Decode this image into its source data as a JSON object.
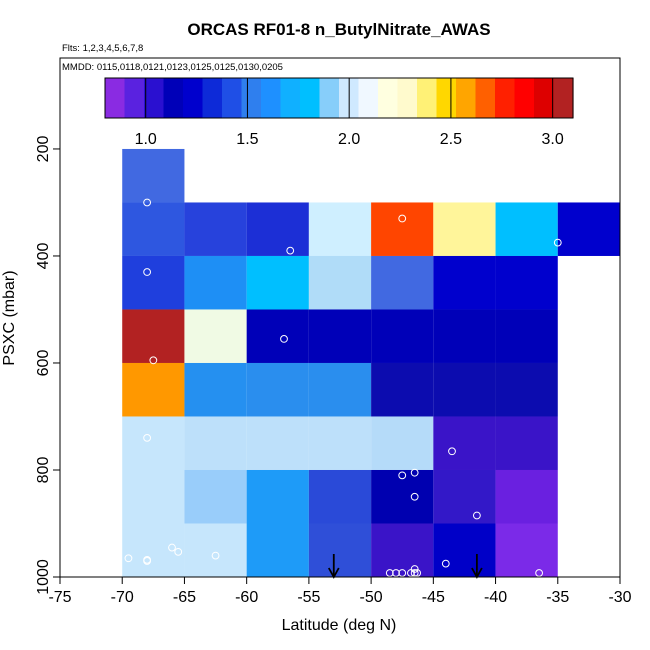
{
  "chart_data": {
    "type": "heatmap",
    "title": "ORCAS RF01-8 n_ButylNitrate_AWAS",
    "flights_label": "Flts: 1,2,3,4,5,6,7,8",
    "dates_label": "MMDD: 0115,0118,0121,0123,0125,0125,0130,0205",
    "xlabel": "Latitude (deg N)",
    "ylabel": "PSXC (mbar)",
    "xlim": [
      -75,
      -30
    ],
    "ylim": [
      1000,
      30
    ],
    "xticks": [
      -75,
      -70,
      -65,
      -60,
      -55,
      -50,
      -45,
      -40,
      -35,
      -30
    ],
    "xtick_labels": [
      "-75",
      "-70",
      "-65",
      "-60",
      "-55",
      "-50",
      "-45",
      "-40",
      "-35",
      "-30"
    ],
    "yticks": [
      200,
      400,
      600,
      800,
      1000
    ],
    "ytick_labels": [
      "200",
      "400",
      "600",
      "800",
      "1000"
    ],
    "colorbar": {
      "range": [
        0.8,
        3.1
      ],
      "ticks": [
        1.0,
        1.5,
        2.0,
        2.5,
        3.0
      ],
      "tick_labels": [
        "1.0",
        "1.5",
        "2.0",
        "2.5",
        "3.0"
      ],
      "colors": [
        "#8a2be2",
        "#5a22e0",
        "#2a10d0",
        "#0000b8",
        "#0000cd",
        "#0d2ad8",
        "#1f4fe6",
        "#2f7fee",
        "#1e90ff",
        "#10b0ff",
        "#00bfff",
        "#87cefa",
        "#cfe9ff",
        "#f0f8ff",
        "#ffffe0",
        "#fffacd",
        "#fff176",
        "#ffd700",
        "#ffa500",
        "#ff6000",
        "#ff2000",
        "#ff0000",
        "#dd0000",
        "#b22222"
      ]
    },
    "cells": [
      {
        "lat0": -70,
        "lat1": -65,
        "p0": 200,
        "p1": 300,
        "value": 1.25,
        "color": "#4169e1"
      },
      {
        "lat0": -70,
        "lat1": -65,
        "p0": 300,
        "p1": 400,
        "value": 1.22,
        "color": "#2e57e0"
      },
      {
        "lat0": -65,
        "lat1": -60,
        "p0": 300,
        "p1": 400,
        "value": 1.15,
        "color": "#2742dc"
      },
      {
        "lat0": -60,
        "lat1": -55,
        "p0": 300,
        "p1": 400,
        "value": 1.12,
        "color": "#1c2fd6"
      },
      {
        "lat0": -55,
        "lat1": -50,
        "p0": 300,
        "p1": 400,
        "value": 1.88,
        "color": "#cfefff"
      },
      {
        "lat0": -50,
        "lat1": -45,
        "p0": 300,
        "p1": 400,
        "value": 2.75,
        "color": "#ff4500"
      },
      {
        "lat0": -45,
        "lat1": -40,
        "p0": 300,
        "p1": 400,
        "value": 2.22,
        "color": "#fff59a"
      },
      {
        "lat0": -40,
        "lat1": -35,
        "p0": 300,
        "p1": 400,
        "value": 1.55,
        "color": "#00bfff"
      },
      {
        "lat0": -35,
        "lat1": -30,
        "p0": 300,
        "p1": 400,
        "value": 0.98,
        "color": "#0000cd"
      },
      {
        "lat0": -70,
        "lat1": -65,
        "p0": 400,
        "p1": 500,
        "value": 1.1,
        "color": "#1f3fdd"
      },
      {
        "lat0": -65,
        "lat1": -60,
        "p0": 400,
        "p1": 500,
        "value": 1.4,
        "color": "#1e8ff5"
      },
      {
        "lat0": -60,
        "lat1": -55,
        "p0": 400,
        "p1": 500,
        "value": 1.55,
        "color": "#00bfff"
      },
      {
        "lat0": -55,
        "lat1": -50,
        "p0": 400,
        "p1": 500,
        "value": 1.8,
        "color": "#b0dcf8"
      },
      {
        "lat0": -50,
        "lat1": -45,
        "p0": 400,
        "p1": 500,
        "value": 1.25,
        "color": "#4169e1"
      },
      {
        "lat0": -45,
        "lat1": -40,
        "p0": 400,
        "p1": 500,
        "value": 0.98,
        "color": "#0000cd"
      },
      {
        "lat0": -40,
        "lat1": -35,
        "p0": 400,
        "p1": 500,
        "value": 0.98,
        "color": "#0000cd"
      },
      {
        "lat0": -70,
        "lat1": -65,
        "p0": 500,
        "p1": 600,
        "value": 3.1,
        "color": "#b22222"
      },
      {
        "lat0": -65,
        "lat1": -60,
        "p0": 500,
        "p1": 600,
        "value": 2.0,
        "color": "#f0fae4"
      },
      {
        "lat0": -60,
        "lat1": -55,
        "p0": 500,
        "p1": 600,
        "value": 0.97,
        "color": "#0000b8"
      },
      {
        "lat0": -55,
        "lat1": -50,
        "p0": 500,
        "p1": 600,
        "value": 0.97,
        "color": "#0000b8"
      },
      {
        "lat0": -50,
        "lat1": -45,
        "p0": 500,
        "p1": 600,
        "value": 0.97,
        "color": "#0000b8"
      },
      {
        "lat0": -45,
        "lat1": -40,
        "p0": 500,
        "p1": 600,
        "value": 0.97,
        "color": "#0000b8"
      },
      {
        "lat0": -40,
        "lat1": -35,
        "p0": 500,
        "p1": 600,
        "value": 0.97,
        "color": "#0000b8"
      },
      {
        "lat0": -70,
        "lat1": -65,
        "p0": 600,
        "p1": 700,
        "value": 2.6,
        "color": "#ff9800"
      },
      {
        "lat0": -65,
        "lat1": -60,
        "p0": 600,
        "p1": 700,
        "value": 1.45,
        "color": "#2590f0"
      },
      {
        "lat0": -60,
        "lat1": -55,
        "p0": 600,
        "p1": 700,
        "value": 1.45,
        "color": "#2a8eee"
      },
      {
        "lat0": -55,
        "lat1": -50,
        "p0": 600,
        "p1": 700,
        "value": 1.45,
        "color": "#2a8eee"
      },
      {
        "lat0": -50,
        "lat1": -45,
        "p0": 600,
        "p1": 700,
        "value": 0.95,
        "color": "#0c0caf"
      },
      {
        "lat0": -45,
        "lat1": -40,
        "p0": 600,
        "p1": 700,
        "value": 0.95,
        "color": "#0c0caf"
      },
      {
        "lat0": -40,
        "lat1": -35,
        "p0": 600,
        "p1": 700,
        "value": 0.95,
        "color": "#0c0caf"
      },
      {
        "lat0": -70,
        "lat1": -65,
        "p0": 700,
        "p1": 800,
        "value": 1.85,
        "color": "#c6e6fc"
      },
      {
        "lat0": -65,
        "lat1": -60,
        "p0": 700,
        "p1": 800,
        "value": 1.8,
        "color": "#bde0fa"
      },
      {
        "lat0": -60,
        "lat1": -55,
        "p0": 700,
        "p1": 800,
        "value": 1.8,
        "color": "#bde0fa"
      },
      {
        "lat0": -55,
        "lat1": -50,
        "p0": 700,
        "p1": 800,
        "value": 1.8,
        "color": "#bde0fa"
      },
      {
        "lat0": -50,
        "lat1": -45,
        "p0": 700,
        "p1": 800,
        "value": 1.78,
        "color": "#b5dbf9"
      },
      {
        "lat0": -45,
        "lat1": -40,
        "p0": 700,
        "p1": 800,
        "value": 0.9,
        "color": "#3a14c8"
      },
      {
        "lat0": -40,
        "lat1": -35,
        "p0": 700,
        "p1": 800,
        "value": 0.9,
        "color": "#3a14c8"
      },
      {
        "lat0": -70,
        "lat1": -65,
        "p0": 800,
        "p1": 900,
        "value": 1.85,
        "color": "#c6e6fc"
      },
      {
        "lat0": -65,
        "lat1": -60,
        "p0": 800,
        "p1": 900,
        "value": 1.7,
        "color": "#99cdfa"
      },
      {
        "lat0": -60,
        "lat1": -55,
        "p0": 800,
        "p1": 900,
        "value": 1.45,
        "color": "#1e9bf8"
      },
      {
        "lat0": -55,
        "lat1": -50,
        "p0": 800,
        "p1": 900,
        "value": 1.18,
        "color": "#2a4ad8"
      },
      {
        "lat0": -50,
        "lat1": -45,
        "p0": 800,
        "p1": 900,
        "value": 0.95,
        "color": "#0000b0"
      },
      {
        "lat0": -45,
        "lat1": -40,
        "p0": 800,
        "p1": 900,
        "value": 0.9,
        "color": "#3318c8"
      },
      {
        "lat0": -40,
        "lat1": -35,
        "p0": 800,
        "p1": 900,
        "value": 0.85,
        "color": "#6a20e0"
      },
      {
        "lat0": -70,
        "lat1": -65,
        "p0": 900,
        "p1": 1000,
        "value": 1.85,
        "color": "#c6e6fc"
      },
      {
        "lat0": -65,
        "lat1": -60,
        "p0": 900,
        "p1": 1000,
        "value": 1.85,
        "color": "#c6e6fc"
      },
      {
        "lat0": -60,
        "lat1": -55,
        "p0": 900,
        "p1": 1000,
        "value": 1.45,
        "color": "#1e9bf8"
      },
      {
        "lat0": -55,
        "lat1": -50,
        "p0": 900,
        "p1": 1000,
        "value": 1.2,
        "color": "#2f4fd8"
      },
      {
        "lat0": -50,
        "lat1": -45,
        "p0": 900,
        "p1": 1000,
        "value": 0.9,
        "color": "#3a14c8"
      },
      {
        "lat0": -45,
        "lat1": -40,
        "p0": 900,
        "p1": 1000,
        "value": 0.97,
        "color": "#0000c8"
      },
      {
        "lat0": -40,
        "lat1": -35,
        "p0": 900,
        "p1": 1000,
        "value": 0.85,
        "color": "#7b2ae8"
      }
    ],
    "points": [
      {
        "lat": -68,
        "p": 300
      },
      {
        "lat": -47.5,
        "p": 330
      },
      {
        "lat": -56.5,
        "p": 390
      },
      {
        "lat": -35,
        "p": 375
      },
      {
        "lat": -68,
        "p": 430
      },
      {
        "lat": -57,
        "p": 555
      },
      {
        "lat": -67.5,
        "p": 595
      },
      {
        "lat": -68,
        "p": 740
      },
      {
        "lat": -43.5,
        "p": 765
      },
      {
        "lat": -46.5,
        "p": 805
      },
      {
        "lat": -47.5,
        "p": 810
      },
      {
        "lat": -46.5,
        "p": 850
      },
      {
        "lat": -41.5,
        "p": 885
      },
      {
        "lat": -66,
        "p": 945
      },
      {
        "lat": -65.5,
        "p": 953
      },
      {
        "lat": -62.5,
        "p": 960
      },
      {
        "lat": -69.5,
        "p": 965
      },
      {
        "lat": -68,
        "p": 968
      },
      {
        "lat": -68,
        "p": 970
      },
      {
        "lat": -44,
        "p": 975
      },
      {
        "lat": -46.5,
        "p": 985
      },
      {
        "lat": -36.5,
        "p": 995
      },
      {
        "lat": -48.5,
        "p": 1000
      },
      {
        "lat": -48,
        "p": 1000
      },
      {
        "lat": -47.5,
        "p": 998
      },
      {
        "lat": -46.8,
        "p": 1000
      },
      {
        "lat": -46.5,
        "p": 996
      },
      {
        "lat": -46.3,
        "p": 1000
      }
    ],
    "arrows": [
      {
        "lat": -53
      },
      {
        "lat": -41.5
      }
    ]
  }
}
